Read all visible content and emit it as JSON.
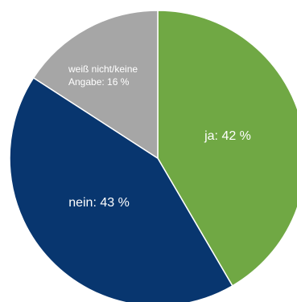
{
  "chart_data": {
    "type": "pie",
    "title": "",
    "slices": [
      {
        "label": "ja: 42 %",
        "category": "ja",
        "value": 42,
        "color": "#70a844"
      },
      {
        "label": "nein: 43 %",
        "category": "nein",
        "value": 43,
        "color": "#08366f"
      },
      {
        "label_lines": [
          "weiß nicht/keine",
          "Angabe: 16 %"
        ],
        "category": "weiß nicht/keine Angabe",
        "value": 16,
        "color": "#a6a6a6"
      }
    ],
    "start_angle_deg": 0,
    "direction": "clockwise",
    "legend": "none"
  }
}
